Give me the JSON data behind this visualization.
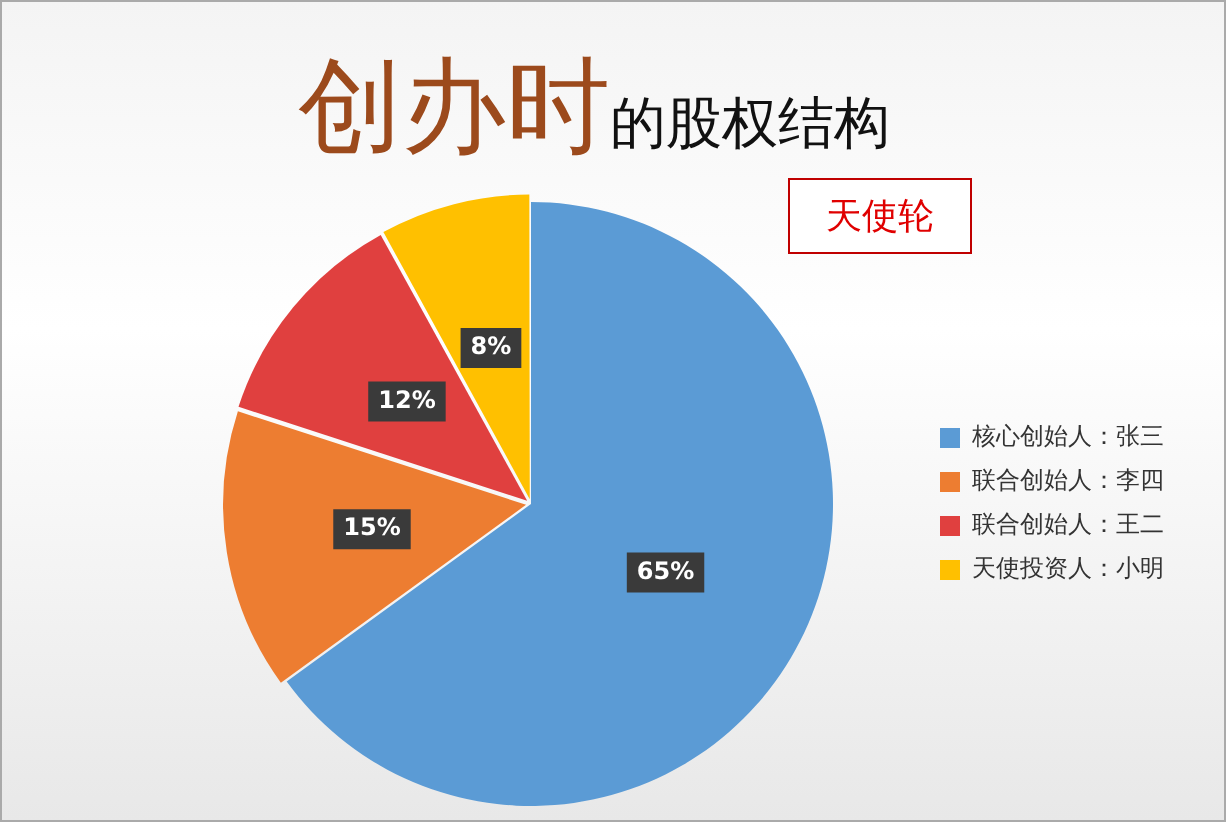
{
  "chart_data": {
    "type": "pie",
    "title": "创办时的股权结构",
    "annotations": [
      "天使轮"
    ],
    "categories": [
      "核心创始人：张三",
      "联合创始人：李四",
      "联合创始人：王二",
      "天使投资人：小明"
    ],
    "values": [
      65,
      15,
      12,
      8
    ],
    "value_labels": [
      "65%",
      "15%",
      "12%",
      "8%"
    ],
    "colors": [
      "#5b9bd5",
      "#ed7d31",
      "#e0403f",
      "#ffc000"
    ],
    "legend": "right"
  }
}
